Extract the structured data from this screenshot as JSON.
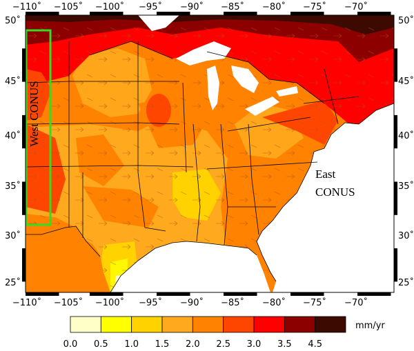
{
  "map": {
    "lon_ticks": [
      "−110˚",
      "−105˚",
      "−100˚",
      "−95˚",
      "−90˚",
      "−85˚",
      "−80˚",
      "−75˚",
      "−70˚"
    ],
    "lat_ticks": [
      "25˚",
      "30˚",
      "35˚",
      "40˚",
      "45˚",
      "50˚"
    ],
    "west_region_label": "West CONUS",
    "east_region_label_line1": "East",
    "east_region_label_line2": "CONUS",
    "west_box_color": "#33dd22"
  },
  "colorbar": {
    "unit": "mm/yr",
    "tick_labels": [
      "0.0",
      "0.5",
      "1.0",
      "1.5",
      "2.0",
      "2.5",
      "3.0",
      "3.5",
      "4.5"
    ],
    "colors": [
      "#ffffc8",
      "#ffff00",
      "#ffd200",
      "#ffaa1e",
      "#ff8200",
      "#ff4600",
      "#ff0000",
      "#8c0000",
      "#3c0a00"
    ]
  }
}
